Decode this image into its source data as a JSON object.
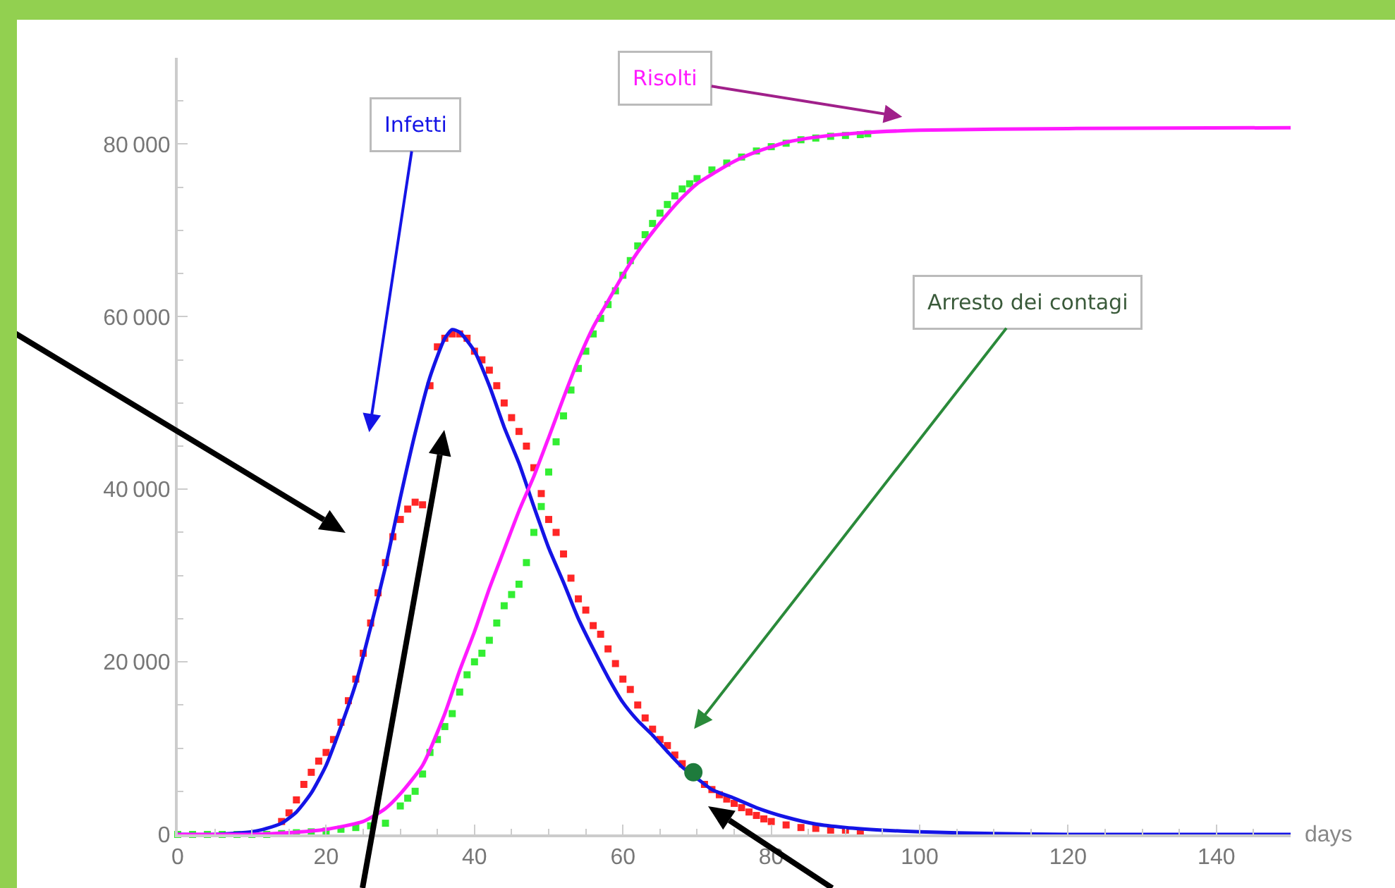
{
  "chart_data": {
    "type": "line",
    "xlabel": "days",
    "xlim": [
      0,
      150
    ],
    "ylim": [
      0,
      90000
    ],
    "xticks": [
      0,
      20,
      40,
      60,
      80,
      100,
      120,
      140
    ],
    "yticks": [
      0,
      20000,
      40000,
      60000,
      80000
    ],
    "grid": false,
    "annotations": [
      "Infetti",
      "Risolti",
      "Arresto dei contagi"
    ],
    "series": [
      {
        "color": "#1414e6",
        "x": [
          0,
          5,
          10,
          12,
          14,
          16,
          18,
          20,
          22,
          24,
          26,
          28,
          30,
          32,
          34,
          36,
          37,
          38,
          40,
          42,
          44,
          46,
          48,
          50,
          52,
          54,
          56,
          58,
          60,
          62,
          64,
          66,
          68,
          70,
          72,
          75,
          78,
          82,
          86,
          90,
          95,
          100,
          110,
          120,
          130,
          150
        ],
        "values": [
          0,
          0,
          300,
          700,
          1300,
          2600,
          4800,
          8000,
          12500,
          17500,
          24000,
          31000,
          39000,
          46500,
          53000,
          57500,
          58500,
          58200,
          56000,
          52000,
          47200,
          43000,
          38000,
          33200,
          29200,
          25000,
          21500,
          18200,
          15300,
          13200,
          11500,
          9600,
          7800,
          6500,
          5200,
          4200,
          3100,
          2000,
          1200,
          800,
          500,
          300,
          100,
          0,
          0,
          0
        ]
      },
      {
        "color": "#ff1aff",
        "x": [
          0,
          5,
          10,
          15,
          20,
          25,
          28,
          30,
          33,
          36,
          38,
          40,
          42,
          44,
          46,
          48,
          50,
          52,
          54,
          56,
          58,
          60,
          62,
          64,
          66,
          68,
          70,
          72,
          75,
          78,
          82,
          86,
          92,
          100,
          120,
          150
        ],
        "values": [
          0,
          0,
          0,
          200,
          600,
          1500,
          3000,
          4700,
          8000,
          14000,
          19000,
          23500,
          28500,
          33000,
          37500,
          41500,
          46000,
          50600,
          55000,
          58800,
          61800,
          64800,
          67500,
          69800,
          71900,
          73800,
          75400,
          76500,
          78000,
          79100,
          80200,
          80800,
          81300,
          81600,
          81800,
          81900
        ]
      },
      {
        "type": "scatter",
        "marker": "circle",
        "color": "#1e7b3c",
        "x": [
          69.5
        ],
        "values": [
          7200
        ]
      },
      {
        "type": "scatter",
        "marker": "square",
        "color": "#ff2626",
        "x": [
          14,
          15,
          16,
          17,
          18,
          19,
          20,
          21,
          22,
          23,
          24,
          25,
          26,
          27,
          28,
          29,
          30,
          31,
          32,
          33,
          34,
          35,
          36,
          37,
          38,
          39,
          40,
          41,
          42,
          43,
          44,
          45,
          46,
          47,
          48,
          49,
          50,
          51,
          52,
          53,
          54,
          55,
          56,
          57,
          58,
          59,
          60,
          61,
          62,
          63,
          64,
          65,
          66,
          67,
          68,
          69,
          70,
          71,
          72,
          73,
          74,
          75,
          76,
          77,
          78,
          79,
          80,
          82,
          84,
          86,
          88,
          90,
          92
        ],
        "values": [
          1500,
          2500,
          4000,
          5800,
          7200,
          8500,
          9500,
          11000,
          13000,
          15500,
          18000,
          21000,
          24500,
          28000,
          31500,
          34500,
          36500,
          37700,
          38500,
          38200,
          52000,
          56500,
          57500,
          58000,
          58000,
          57500,
          56000,
          55000,
          53800,
          52000,
          50000,
          48300,
          46700,
          45000,
          42500,
          39500,
          36500,
          35000,
          32500,
          29700,
          27300,
          26000,
          24200,
          23200,
          21500,
          19800,
          18000,
          16800,
          15000,
          13500,
          12200,
          11000,
          10300,
          9200,
          8200,
          null,
          null,
          5800,
          5200,
          4600,
          4100,
          3600,
          3100,
          2600,
          2200,
          1800,
          1500,
          1100,
          800,
          700,
          500,
          500,
          400
        ]
      },
      {
        "type": "scatter",
        "marker": "square",
        "color": "#33ee33",
        "x": [
          0,
          2,
          4,
          6,
          8,
          10,
          12,
          14,
          16,
          18,
          20,
          22,
          24,
          26,
          28,
          30,
          31,
          32,
          33,
          34,
          35,
          36,
          37,
          38,
          39,
          40,
          41,
          42,
          43,
          44,
          45,
          46,
          47,
          48,
          49,
          50,
          51,
          52,
          53,
          54,
          55,
          56,
          57,
          58,
          59,
          60,
          61,
          62,
          63,
          64,
          65,
          66,
          67,
          68,
          69,
          70,
          72,
          74,
          76,
          78,
          80,
          82,
          84,
          86,
          88,
          90,
          92,
          93
        ],
        "values": [
          0,
          0,
          0,
          0,
          0,
          0,
          0,
          100,
          200,
          300,
          400,
          600,
          800,
          1000,
          1300,
          3300,
          4200,
          5000,
          7000,
          9500,
          11000,
          12500,
          14000,
          16500,
          18500,
          20000,
          21000,
          22500,
          24500,
          26500,
          27800,
          29000,
          31500,
          35000,
          38000,
          42000,
          45500,
          48500,
          51500,
          54000,
          56000,
          58000,
          59800,
          61400,
          63000,
          64800,
          66500,
          68200,
          69500,
          70800,
          72000,
          73000,
          74000,
          74800,
          75400,
          76000,
          77000,
          77800,
          78500,
          79200,
          79700,
          80100,
          80500,
          80700,
          80900,
          81000,
          81100,
          81200
        ]
      }
    ]
  }
}
